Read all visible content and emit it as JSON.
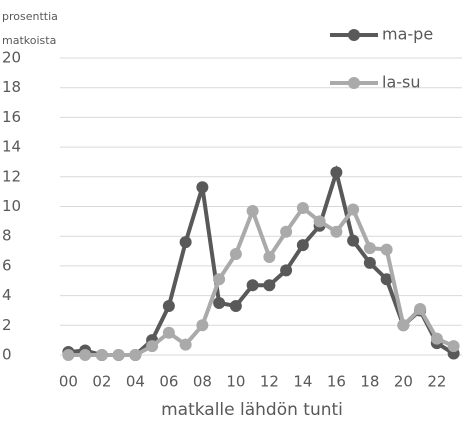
{
  "chart_data": {
    "type": "line",
    "ylabel": [
      "prosenttia",
      "matkoista"
    ],
    "xlabel": "matkalle lähdön tunti",
    "categories": [
      "00",
      null,
      "02",
      null,
      "04",
      null,
      "06",
      null,
      "08",
      null,
      "10",
      null,
      "12",
      null,
      "14",
      null,
      "16",
      null,
      "18",
      null,
      "20",
      null,
      "22",
      null
    ],
    "series": [
      {
        "name": "ma-pe",
        "color": "#595959",
        "values": [
          0.2,
          0.3,
          0,
          0,
          0,
          1.0,
          3.3,
          7.6,
          11.3,
          3.5,
          3.3,
          4.7,
          4.7,
          5.7,
          7.4,
          8.7,
          12.3,
          7.7,
          6.2,
          5.1,
          2.0,
          3.0,
          0.8,
          0.1
        ]
      },
      {
        "name": "la-su",
        "color": "#aaaaaa",
        "values": [
          0,
          0,
          0,
          0,
          0,
          0.6,
          1.5,
          0.7,
          2.0,
          5.1,
          6.8,
          9.7,
          6.6,
          8.3,
          9.9,
          9.0,
          8.3,
          9.8,
          7.2,
          7.1,
          2.0,
          3.1,
          1.1,
          0.6
        ]
      }
    ],
    "ylim": [
      0,
      20
    ],
    "yticks": [
      0,
      2,
      4,
      6,
      8,
      10,
      12,
      14,
      16,
      18,
      20
    ],
    "grid": true
  }
}
